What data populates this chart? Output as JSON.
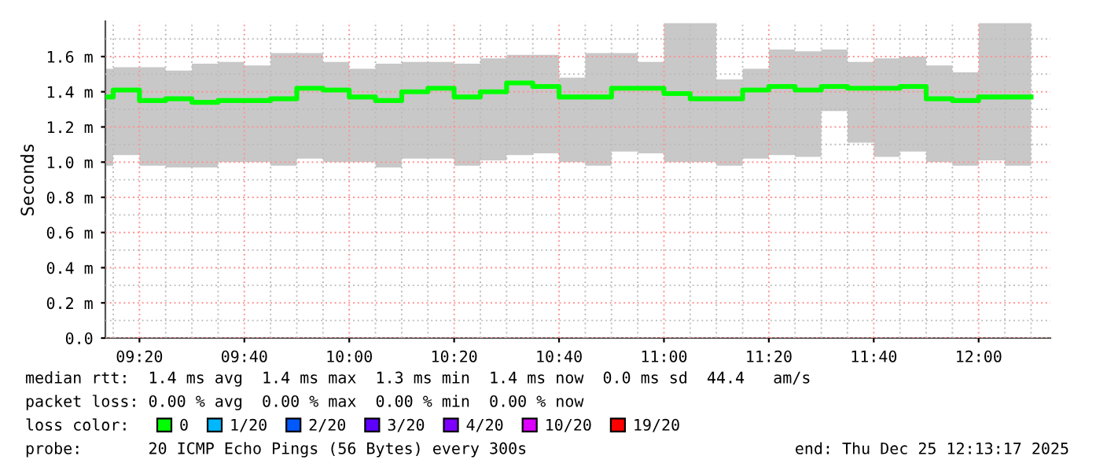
{
  "chart_data": {
    "type": "step",
    "ylabel": "Seconds",
    "legend_title": "loss color:",
    "legend": "bottom",
    "grid": true,
    "xlim": [
      9.225,
      12.228
    ],
    "ylim": [
      0,
      1.8
    ],
    "xticks": [
      {
        "value": 9.25,
        "label": null
      },
      {
        "value": 9.33333,
        "label": "09:20"
      },
      {
        "value": 9.41667,
        "label": null
      },
      {
        "value": 9.5,
        "label": null
      },
      {
        "value": 9.58333,
        "label": null
      },
      {
        "value": 9.66667,
        "label": "09:40"
      },
      {
        "value": 9.75,
        "label": null
      },
      {
        "value": 9.83333,
        "label": null
      },
      {
        "value": 9.91667,
        "label": null
      },
      {
        "value": 10,
        "label": "10:00"
      },
      {
        "value": 10.08333,
        "label": null
      },
      {
        "value": 10.16667,
        "label": null
      },
      {
        "value": 10.25,
        "label": null
      },
      {
        "value": 10.33333,
        "label": "10:20"
      },
      {
        "value": 10.41667,
        "label": null
      },
      {
        "value": 10.5,
        "label": null
      },
      {
        "value": 10.58333,
        "label": null
      },
      {
        "value": 10.66667,
        "label": "10:40"
      },
      {
        "value": 10.75,
        "label": null
      },
      {
        "value": 10.83333,
        "label": null
      },
      {
        "value": 10.91667,
        "label": null
      },
      {
        "value": 11,
        "label": "11:00"
      },
      {
        "value": 11.08333,
        "label": null
      },
      {
        "value": 11.16667,
        "label": null
      },
      {
        "value": 11.25,
        "label": null
      },
      {
        "value": 11.33333,
        "label": "11:20"
      },
      {
        "value": 11.41667,
        "label": null
      },
      {
        "value": 11.5,
        "label": null
      },
      {
        "value": 11.58333,
        "label": null
      },
      {
        "value": 11.66667,
        "label": "11:40"
      },
      {
        "value": 11.75,
        "label": null
      },
      {
        "value": 11.83333,
        "label": null
      },
      {
        "value": 11.91667,
        "label": null
      },
      {
        "value": 12,
        "label": "12:00"
      },
      {
        "value": 12.08333,
        "label": null
      },
      {
        "value": 12.16667,
        "label": null
      }
    ],
    "yticks": [
      {
        "value": 0,
        "label": "0.0"
      },
      {
        "value": 0.1,
        "label": null
      },
      {
        "value": 0.2,
        "label": "0.2 m"
      },
      {
        "value": 0.3,
        "label": null
      },
      {
        "value": 0.4,
        "label": "0.4 m"
      },
      {
        "value": 0.5,
        "label": null
      },
      {
        "value": 0.6,
        "label": "0.6 m"
      },
      {
        "value": 0.7,
        "label": null
      },
      {
        "value": 0.8,
        "label": "0.8 m"
      },
      {
        "value": 0.9,
        "label": null
      },
      {
        "value": 1.0,
        "label": "1.0 m"
      },
      {
        "value": 1.1,
        "label": null
      },
      {
        "value": 1.2,
        "label": "1.2 m"
      },
      {
        "value": 1.3,
        "label": null
      },
      {
        "value": 1.4,
        "label": "1.4 m"
      },
      {
        "value": 1.5,
        "label": null
      },
      {
        "value": 1.6,
        "label": "1.6 m"
      },
      {
        "value": 1.7,
        "label": null
      }
    ],
    "x": [
      9.225,
      9.25,
      9.33333,
      9.41667,
      9.5,
      9.58333,
      9.66667,
      9.75,
      9.83333,
      9.91667,
      10,
      10.08333,
      10.16667,
      10.25,
      10.33333,
      10.41667,
      10.5,
      10.58333,
      10.66667,
      10.75,
      10.83333,
      10.91667,
      11,
      11.08333,
      11.16667,
      11.25,
      11.33333,
      11.41667,
      11.5,
      11.58333,
      11.66667,
      11.75,
      11.83333,
      11.91667,
      12,
      12.08333,
      12.16667
    ],
    "series": [
      {
        "name": "0",
        "color": "#00ff00",
        "values": [
          1.37,
          1.41,
          1.35,
          1.36,
          1.34,
          1.35,
          1.35,
          1.36,
          1.42,
          1.41,
          1.37,
          1.35,
          1.4,
          1.42,
          1.37,
          1.4,
          1.45,
          1.43,
          1.37,
          1.37,
          1.42,
          1.42,
          1.39,
          1.36,
          1.36,
          1.41,
          1.43,
          1.41,
          1.43,
          1.42,
          1.42,
          1.43,
          1.36,
          1.35,
          1.37,
          1.37,
          1.37
        ],
        "lower": [
          0.98,
          1.04,
          0.98,
          0.97,
          0.97,
          1.0,
          1.0,
          0.98,
          1.02,
          1.0,
          1.0,
          0.97,
          1.02,
          1.02,
          0.98,
          1.01,
          1.04,
          1.05,
          1.0,
          0.98,
          1.06,
          1.05,
          1.0,
          1.0,
          0.98,
          1.02,
          1.04,
          1.03,
          1.29,
          1.11,
          1.03,
          1.06,
          1.0,
          0.98,
          1.01,
          0.98,
          0.98
        ],
        "upper": [
          1.53,
          1.54,
          1.54,
          1.52,
          1.56,
          1.57,
          1.55,
          1.62,
          1.62,
          1.57,
          1.53,
          1.56,
          1.57,
          1.57,
          1.56,
          1.59,
          1.61,
          1.61,
          1.48,
          1.62,
          1.62,
          1.57,
          1.79,
          1.79,
          1.47,
          1.53,
          1.64,
          1.63,
          1.64,
          1.57,
          1.59,
          1.6,
          1.55,
          1.51,
          1.79,
          1.79,
          1.79
        ]
      },
      {
        "name": "1/20",
        "color": "#00b8ff",
        "values": [
          null,
          null,
          null,
          null,
          null,
          null,
          null,
          null,
          null,
          null,
          null,
          null,
          null,
          null,
          null,
          null,
          null,
          null,
          null,
          null,
          null,
          null,
          null,
          null,
          null,
          null,
          null,
          null,
          null,
          null,
          null,
          null,
          null,
          null,
          null,
          null,
          null
        ]
      },
      {
        "name": "2/20",
        "color": "#0059ff",
        "values": [
          null,
          null,
          null,
          null,
          null,
          null,
          null,
          null,
          null,
          null,
          null,
          null,
          null,
          null,
          null,
          null,
          null,
          null,
          null,
          null,
          null,
          null,
          null,
          null,
          null,
          null,
          null,
          null,
          null,
          null,
          null,
          null,
          null,
          null,
          null,
          null,
          null
        ]
      },
      {
        "name": "3/20",
        "color": "#5e00ff",
        "values": [
          null,
          null,
          null,
          null,
          null,
          null,
          null,
          null,
          null,
          null,
          null,
          null,
          null,
          null,
          null,
          null,
          null,
          null,
          null,
          null,
          null,
          null,
          null,
          null,
          null,
          null,
          null,
          null,
          null,
          null,
          null,
          null,
          null,
          null,
          null,
          null,
          null
        ]
      },
      {
        "name": "4/20",
        "color": "#7e00ff",
        "values": [
          null,
          null,
          null,
          null,
          null,
          null,
          null,
          null,
          null,
          null,
          null,
          null,
          null,
          null,
          null,
          null,
          null,
          null,
          null,
          null,
          null,
          null,
          null,
          null,
          null,
          null,
          null,
          null,
          null,
          null,
          null,
          null,
          null,
          null,
          null,
          null,
          null
        ]
      },
      {
        "name": "10/20",
        "color": "#dd00ff",
        "values": [
          null,
          null,
          null,
          null,
          null,
          null,
          null,
          null,
          null,
          null,
          null,
          null,
          null,
          null,
          null,
          null,
          null,
          null,
          null,
          null,
          null,
          null,
          null,
          null,
          null,
          null,
          null,
          null,
          null,
          null,
          null,
          null,
          null,
          null,
          null,
          null,
          null
        ]
      },
      {
        "name": "19/20",
        "color": "#ff0000",
        "values": [
          null,
          null,
          null,
          null,
          null,
          null,
          null,
          null,
          null,
          null,
          null,
          null,
          null,
          null,
          null,
          null,
          null,
          null,
          null,
          null,
          null,
          null,
          null,
          null,
          null,
          null,
          null,
          null,
          null,
          null,
          null,
          null,
          null,
          null,
          null,
          null,
          null
        ]
      }
    ],
    "annotations": [
      "median rtt:  1.4 ms avg  1.4 ms max  1.3 ms min  1.4 ms now  0.0 ms sd  44.4   am/s",
      "packet loss: 0.00 % avg  0.00 % max  0.00 % min  0.00 % now",
      "probe:       20 ICMP Echo Pings (56 Bytes) every 300s",
      "end: Thu Dec 25 12:13:17 2025"
    ]
  }
}
